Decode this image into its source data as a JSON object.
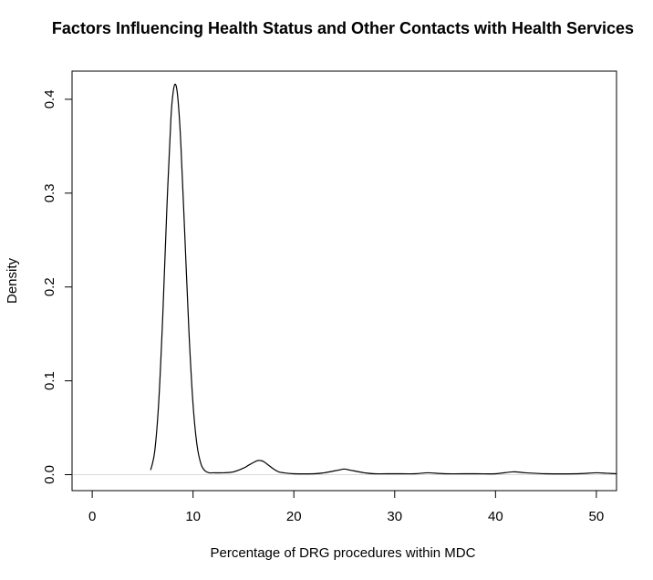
{
  "chart_data": {
    "type": "line",
    "title": "Factors Influencing Health Status and Other Contacts with Health Services",
    "xlabel": "Percentage of DRG procedures within MDC",
    "ylabel": "Density",
    "xlim": [
      -2,
      52
    ],
    "ylim": [
      -0.017,
      0.43
    ],
    "x_ticks": [
      0,
      10,
      20,
      30,
      40,
      50
    ],
    "x_tick_labels": [
      "0",
      "10",
      "20",
      "30",
      "40",
      "50"
    ],
    "y_ticks": [
      0.0,
      0.1,
      0.2,
      0.3,
      0.4
    ],
    "y_tick_labels": [
      "0.0",
      "0.1",
      "0.2",
      "0.3",
      "0.4"
    ],
    "grid": false,
    "line_color": "#000000",
    "series": [
      {
        "x": [
          5.8,
          6.2,
          6.6,
          7.0,
          7.4,
          7.8,
          8.0,
          8.2,
          8.4,
          8.6,
          8.8,
          9.2,
          9.6,
          10.0,
          10.4,
          10.8,
          11.2,
          11.6,
          12.0,
          13.0,
          14.0,
          15.0,
          15.5,
          16.0,
          16.4,
          16.7,
          17.0,
          17.5,
          18.0,
          18.5,
          19.0,
          20.0,
          22.0,
          23.0,
          24.0,
          24.5,
          25.0,
          25.5,
          26.0,
          27.0,
          28.0,
          30.0,
          32.0,
          33.3,
          35.0,
          38.0,
          40.0,
          41.7,
          43.0,
          45.0,
          48.0,
          50.0,
          51.0,
          52.0
        ],
        "y": [
          0.005,
          0.025,
          0.078,
          0.17,
          0.283,
          0.378,
          0.405,
          0.416,
          0.41,
          0.387,
          0.35,
          0.251,
          0.151,
          0.075,
          0.031,
          0.011,
          0.004,
          0.002,
          0.002,
          0.002,
          0.003,
          0.007,
          0.01,
          0.013,
          0.015,
          0.015,
          0.014,
          0.01,
          0.006,
          0.003,
          0.002,
          0.001,
          0.001,
          0.002,
          0.004,
          0.005,
          0.006,
          0.005,
          0.004,
          0.002,
          0.001,
          0.001,
          0.001,
          0.002,
          0.001,
          0.001,
          0.001,
          0.003,
          0.002,
          0.001,
          0.001,
          0.002,
          0.0015,
          0.001
        ]
      }
    ]
  }
}
